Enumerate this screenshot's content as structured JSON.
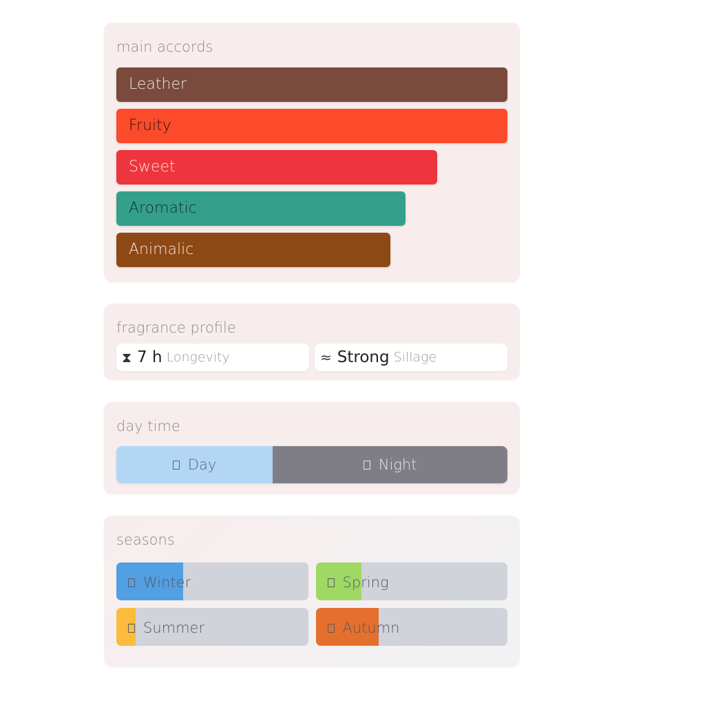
{
  "main_accords": {
    "title": "main accords",
    "items": [
      {
        "label": "Leather",
        "percent": 100,
        "color": "#7a4a3c",
        "text_color": "#f0e6e2"
      },
      {
        "label": "Fruity",
        "percent": 100,
        "color": "#fc4b2a",
        "text_color": "#2a1410"
      },
      {
        "label": "Sweet",
        "percent": 82,
        "color": "#ee343c",
        "text_color": "#fbe0e0"
      },
      {
        "label": "Aromatic",
        "percent": 74,
        "color": "#35a08a",
        "text_color": "#10302a"
      },
      {
        "label": "Animalic",
        "percent": 70,
        "color": "#8d4915",
        "text_color": "#f6e6da"
      }
    ]
  },
  "fragrance_profile": {
    "title": "fragrance profile",
    "longevity": {
      "icon": "hourglass-icon",
      "value": "7 h",
      "label": "Longevity"
    },
    "sillage": {
      "icon": "waves-icon",
      "value": "Strong",
      "label": "Sillage"
    }
  },
  "day_time": {
    "title": "day time",
    "day": {
      "label": "Day",
      "percent": 40,
      "color": "#b3d6f4"
    },
    "night": {
      "label": "Night",
      "percent": 60,
      "color": "#7f7e86"
    }
  },
  "seasons": {
    "title": "seasons",
    "items": [
      {
        "label": "Winter",
        "percent": 35,
        "color": "#529fe3"
      },
      {
        "label": "Spring",
        "percent": 24,
        "color": "#9fd963"
      },
      {
        "label": "Summer",
        "percent": 10,
        "color": "#fbbb3c"
      },
      {
        "label": "Autumn",
        "percent": 33,
        "color": "#e56f2c"
      }
    ]
  }
}
